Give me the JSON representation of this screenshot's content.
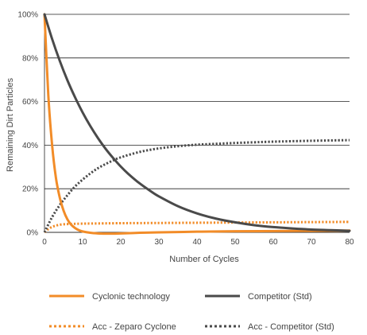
{
  "chart_data": {
    "type": "line",
    "title": "",
    "xlabel": "Number of Cycles",
    "ylabel": "Remaining Dirt Particles",
    "xlim": [
      0,
      80
    ],
    "ylim": [
      0,
      100
    ],
    "x_ticks": [
      0,
      10,
      20,
      30,
      40,
      50,
      60,
      70,
      80
    ],
    "y_ticks": [
      0,
      20,
      40,
      60,
      80,
      100
    ],
    "y_tick_labels": [
      "0%",
      "20%",
      "40%",
      "60%",
      "80%",
      "100%"
    ],
    "grid": "horizontal",
    "legend_position": "bottom",
    "series": [
      {
        "name": "Cyclonic technology",
        "color": "#F28C28",
        "style": "solid",
        "x": [
          0,
          1,
          2,
          3,
          4,
          5,
          6,
          7,
          8,
          9,
          10,
          12,
          14,
          16,
          18,
          20,
          25,
          30,
          40,
          50,
          60,
          70,
          80
        ],
        "y": [
          100,
          63,
          40,
          25,
          16,
          10,
          6,
          3.5,
          2,
          1,
          0.4,
          -0.2,
          -0.5,
          -0.6,
          -0.6,
          -0.5,
          -0.2,
          0,
          0.3,
          0.5,
          0.6,
          0.7,
          0.8
        ]
      },
      {
        "name": "Competitor (Std)",
        "color": "#4A4A4A",
        "style": "solid",
        "x": [
          0,
          2,
          4,
          6,
          8,
          10,
          12,
          14,
          16,
          18,
          20,
          22,
          25,
          28,
          30,
          35,
          40,
          45,
          50,
          55,
          60,
          65,
          70,
          75,
          80
        ],
        "y": [
          100,
          88.7,
          78.7,
          69.8,
          62,
          55,
          48.8,
          43.3,
          38.4,
          34.1,
          30.2,
          26.8,
          22.4,
          18.7,
          16.5,
          12,
          8.7,
          6.3,
          4.6,
          3.3,
          2.4,
          1.8,
          1.3,
          1,
          0.7
        ]
      },
      {
        "name": "Acc - Zeparo Cyclone",
        "color": "#F28C28",
        "style": "dotted",
        "x": [
          0,
          1,
          2,
          3,
          4,
          5,
          6,
          8,
          10,
          15,
          20,
          30,
          40,
          50,
          60,
          70,
          80
        ],
        "y": [
          0,
          1.5,
          2.5,
          3.1,
          3.5,
          3.7,
          3.8,
          3.9,
          4,
          4.1,
          4.2,
          4.3,
          4.4,
          4.5,
          4.6,
          4.7,
          4.8
        ]
      },
      {
        "name": "Acc - Competitor (Std)",
        "color": "#4A4A4A",
        "style": "dotted",
        "x": [
          0,
          2,
          4,
          6,
          8,
          10,
          12,
          14,
          16,
          18,
          20,
          25,
          30,
          35,
          40,
          45,
          50,
          55,
          60,
          70,
          80
        ],
        "y": [
          0,
          7,
          12.5,
          17,
          21,
          24.2,
          27,
          29.4,
          31.3,
          33,
          34.4,
          36.9,
          38.5,
          39.5,
          40.2,
          40.6,
          41,
          41.3,
          41.6,
          42,
          42.3
        ]
      }
    ]
  }
}
